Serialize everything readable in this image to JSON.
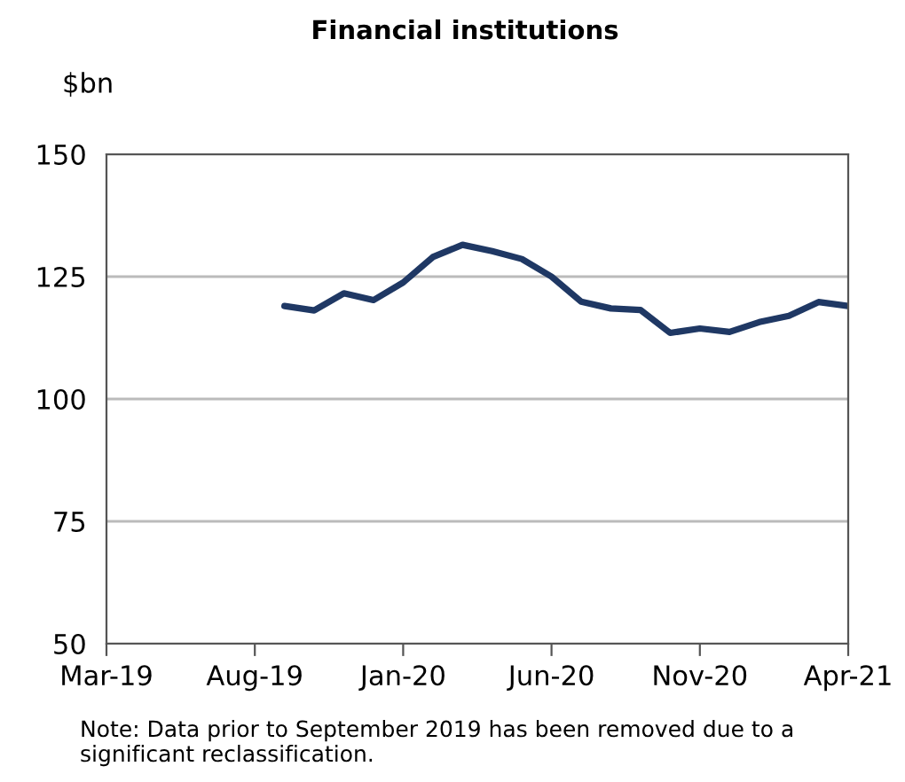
{
  "chart_data": {
    "type": "line",
    "title": "Financial institutions",
    "ylabel": "$bn",
    "categories": [
      "Mar-19",
      null,
      null,
      null,
      null,
      "Aug-19",
      null,
      null,
      null,
      null,
      "Jan-20",
      null,
      null,
      null,
      null,
      "Jun-20",
      null,
      null,
      null,
      null,
      "Nov-20",
      null,
      null,
      null,
      null,
      "Apr-21"
    ],
    "series": [
      {
        "color": "#1f3864",
        "values": [
          null,
          null,
          null,
          null,
          null,
          null,
          119.0,
          118.1,
          121.6,
          120.2,
          123.8,
          129.0,
          131.5,
          130.2,
          128.6,
          125.0,
          119.9,
          118.5,
          118.2,
          113.5,
          114.4,
          113.7,
          115.7,
          117.0,
          119.8,
          119.0
        ]
      }
    ],
    "ylim": [
      50,
      150
    ],
    "yticks": [
      50,
      75,
      100,
      125,
      150
    ],
    "grid": "y",
    "legend": false,
    "line_style": "solid",
    "marker": "none",
    "annotations": [
      "Note: Data prior to September 2019 has been removed due to a significant reclassification."
    ]
  }
}
